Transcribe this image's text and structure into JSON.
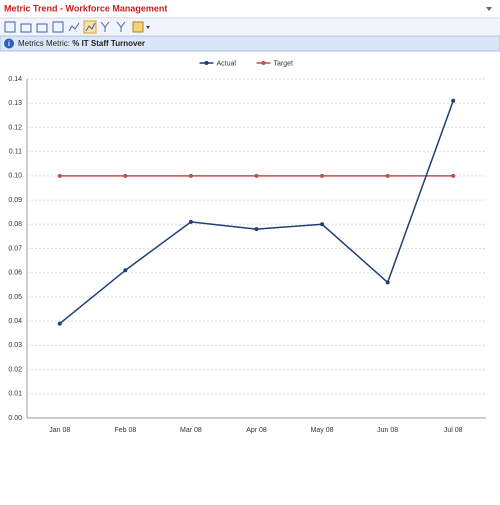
{
  "window": {
    "title": "Metric Trend - Workforce Management",
    "metric_prefix": "Metrics Metric:",
    "metric_name": "% IT Staff Turnover"
  },
  "chart_data": {
    "type": "line",
    "categories": [
      "Jan 08",
      "Feb 08",
      "Mar 08",
      "Apr 08",
      "May 08",
      "Jun 08",
      "Jul 08"
    ],
    "series": [
      {
        "name": "Actual",
        "color": "#1f3f75",
        "values": [
          0.039,
          0.061,
          0.081,
          0.078,
          0.08,
          0.056,
          0.131
        ]
      },
      {
        "name": "Target",
        "color": "#c0504d",
        "values": [
          0.1,
          0.1,
          0.1,
          0.1,
          0.1,
          0.1,
          0.1
        ]
      }
    ],
    "ylim": [
      0,
      0.14
    ],
    "yticks": [
      {
        "value": 0,
        "label": "0.00"
      },
      0.01,
      0.02,
      0.03,
      0.04,
      0.05,
      0.06,
      0.07,
      0.08,
      0.09,
      {
        "value": 0.1,
        "label": "0.10"
      },
      0.11,
      0.12,
      0.13,
      0.14
    ],
    "grid": true,
    "legend": "top"
  }
}
